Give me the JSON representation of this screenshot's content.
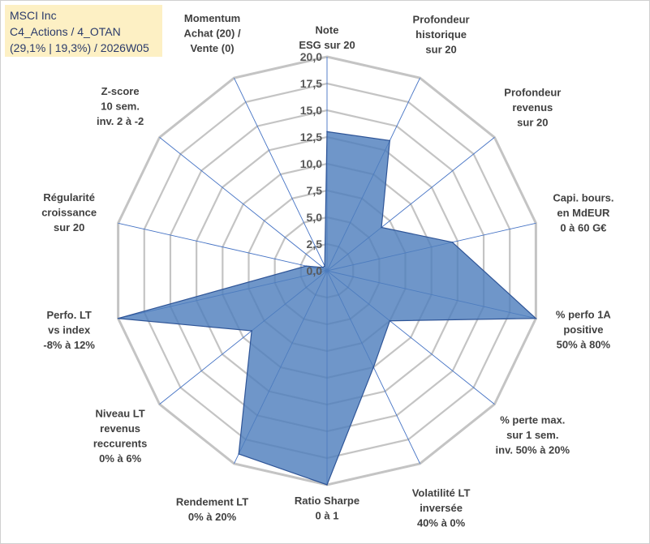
{
  "title": {
    "line1": "MSCI Inc",
    "line2": "C4_Actions / 4_OTAN",
    "line3": "(29,1% | 19,3%) / 2026W05"
  },
  "chart_data": {
    "type": "radar",
    "rmin": 0,
    "rmax": 20,
    "ticks": [
      "0,0",
      "2,5",
      "5,0",
      "7,5",
      "10,0",
      "12,5",
      "15,0",
      "17,5",
      "20,0"
    ],
    "tick_values": [
      0,
      2.5,
      5,
      7.5,
      10,
      12.5,
      15,
      17.5,
      20
    ],
    "axes": [
      {
        "lines": [
          "Note",
          "ESG sur 20"
        ],
        "value": 13.0
      },
      {
        "lines": [
          "Profondeur",
          "historique",
          "sur 20"
        ],
        "value": 13.5
      },
      {
        "lines": [
          "Profondeur",
          "revenus",
          "sur 20"
        ],
        "value": 6.5
      },
      {
        "lines": [
          "Capi. bours.",
          "en MdEUR",
          "0 à 60 G€"
        ],
        "value": 12.0
      },
      {
        "lines": [
          "% perfo 1A",
          "positive",
          "50% à 80%"
        ],
        "value": 20.0
      },
      {
        "lines": [
          "% perte max.",
          "sur 1 sem.",
          "inv. 50% à 20%"
        ],
        "value": 7.5
      },
      {
        "lines": [
          "Volatilité LT",
          "inversée",
          "40% à 0%"
        ],
        "value": 10.0
      },
      {
        "lines": [
          "Ratio Sharpe",
          "0 à 1"
        ],
        "value": 20.0
      },
      {
        "lines": [
          "Rendement LT",
          "0% à 20%"
        ],
        "value": 19.0
      },
      {
        "lines": [
          "Niveau LT",
          "revenus",
          "reccurents",
          "0% à 6%"
        ],
        "value": 9.0
      },
      {
        "lines": [
          "Perfo. LT",
          "vs index",
          "-8% à 12%"
        ],
        "value": 20.0
      },
      {
        "lines": [
          "Régularité",
          "croissance",
          "sur 20"
        ],
        "value": 2.0
      },
      {
        "lines": [
          "Z-score",
          "10 sem.",
          "inv. 2 à -2"
        ],
        "value": 0.5
      },
      {
        "lines": [
          "Momentum",
          "Achat (20) /",
          "Vente (0)"
        ],
        "value": 0.5
      }
    ],
    "colors": {
      "fill": "#4f7fbd",
      "stroke": "#2f5597",
      "grid": "#c4c4c4",
      "spoke": "#4472c4"
    }
  }
}
